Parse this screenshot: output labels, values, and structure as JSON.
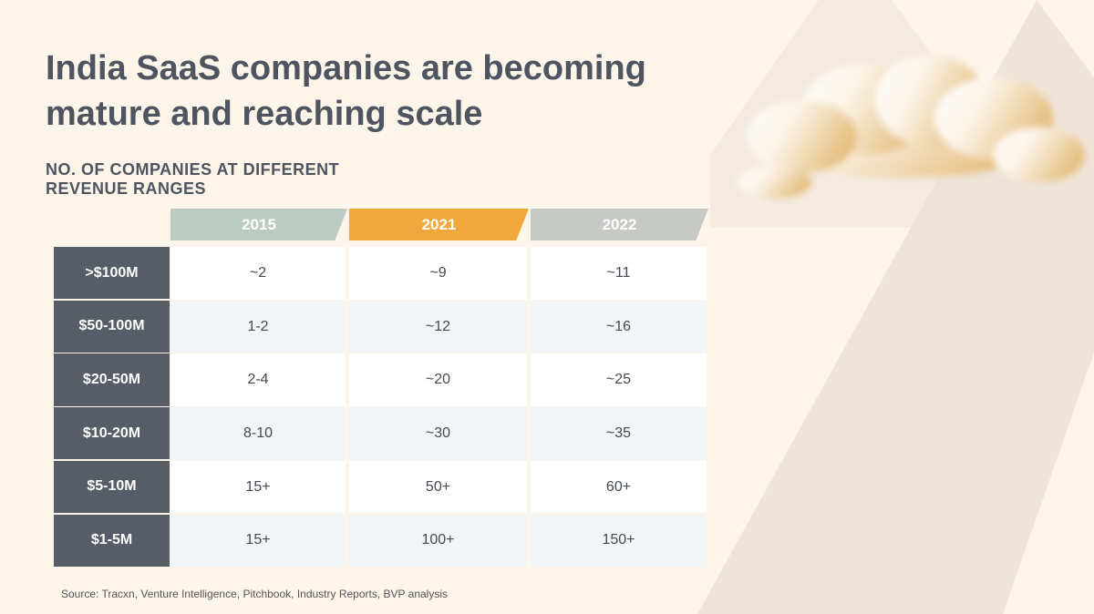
{
  "title": "India SaaS companies are becoming mature and reaching scale",
  "subtitle": "NO. OF COMPANIES AT DIFFERENT REVENUE RANGES",
  "columns": [
    {
      "label": "2015",
      "color": "#bccbc2"
    },
    {
      "label": "2021",
      "color": "#f0a83c"
    },
    {
      "label": "2022",
      "color": "#c7c9c5"
    }
  ],
  "rows": [
    {
      "label": ">$100M",
      "values": [
        "~2",
        "~9",
        "~11"
      ]
    },
    {
      "label": "$50-100M",
      "values": [
        "1-2",
        "~12",
        "~16"
      ]
    },
    {
      "label": "$20-50M",
      "values": [
        "2-4",
        "~20",
        "~25"
      ]
    },
    {
      "label": "$10-20M",
      "values": [
        "8-10",
        "~30",
        "~35"
      ]
    },
    {
      "label": "$5-10M",
      "values": [
        "15+",
        "50+",
        "60+"
      ]
    },
    {
      "label": "$1-5M",
      "values": [
        "15+",
        "100+",
        "150+"
      ]
    }
  ],
  "source": "Source: Tracxn, Venture Intelligence, Pitchbook, Industry Reports, BVP analysis",
  "decor": {
    "icon": "cloud-icon"
  }
}
